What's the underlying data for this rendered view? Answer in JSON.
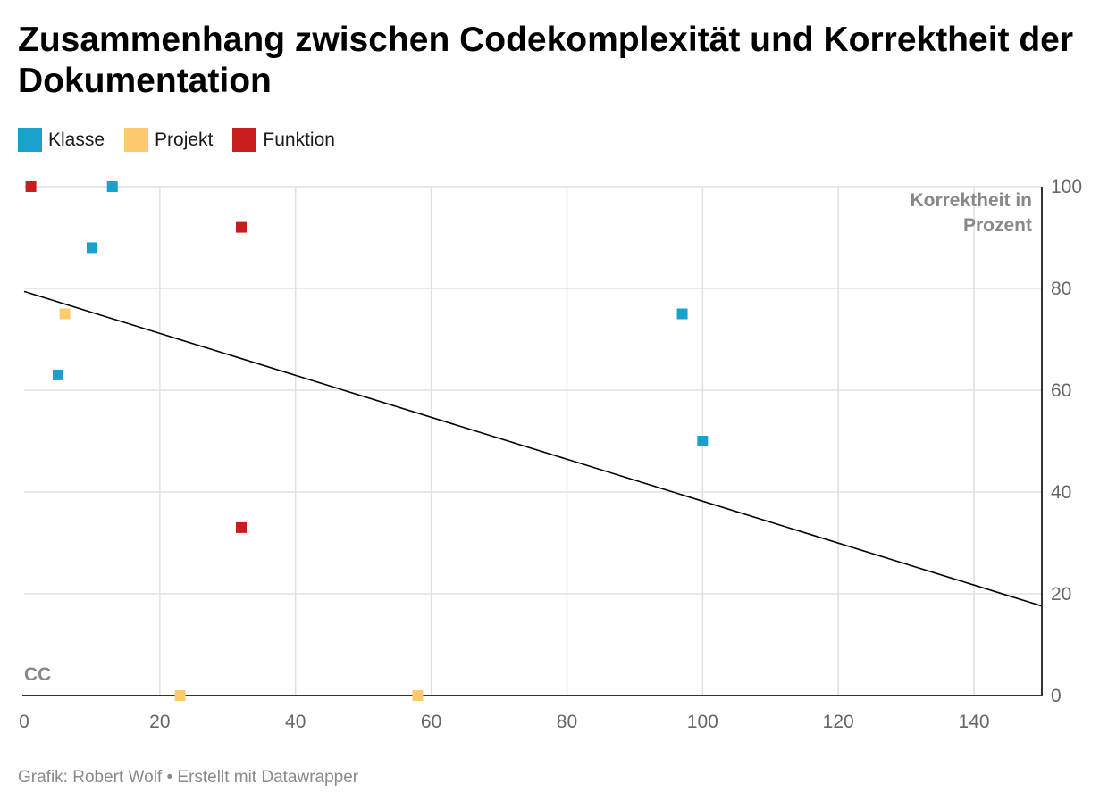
{
  "header": {
    "title": "Zusammenhang zwischen Codekomplexität und Korrektheit der Dokumentation"
  },
  "footer": {
    "source": "Grafik: Robert Wolf • Erstellt mit Datawrapper"
  },
  "chart_data": {
    "type": "scatter",
    "title": "Zusammenhang zwischen Codekomplexität und Korrektheit der Dokumentation",
    "xlabel": "CC",
    "ylabel": "Korrektheit in Prozent",
    "xlim": [
      0,
      150
    ],
    "ylim": [
      0,
      100
    ],
    "x_ticks": [
      0,
      20,
      40,
      60,
      80,
      100,
      120,
      140
    ],
    "y_ticks": [
      0,
      20,
      40,
      60,
      80,
      100
    ],
    "grid": true,
    "legend_position": "top-left",
    "series": [
      {
        "name": "Klasse",
        "color": "#18a1cd",
        "points": [
          {
            "x": 13,
            "y": 100
          },
          {
            "x": 10,
            "y": 88
          },
          {
            "x": 5,
            "y": 63
          },
          {
            "x": 97,
            "y": 75
          },
          {
            "x": 100,
            "y": 50
          }
        ]
      },
      {
        "name": "Projekt",
        "color": "#fdca70",
        "points": [
          {
            "x": 6,
            "y": 75
          },
          {
            "x": 23,
            "y": 0
          },
          {
            "x": 58,
            "y": 0
          }
        ]
      },
      {
        "name": "Funktion",
        "color": "#c71e1d",
        "points": [
          {
            "x": 1,
            "y": 100
          },
          {
            "x": 32,
            "y": 92
          },
          {
            "x": 32,
            "y": 33
          }
        ]
      }
    ],
    "trendline": {
      "color": "#000000",
      "points": [
        {
          "x": 0,
          "y": 79.4
        },
        {
          "x": 150,
          "y": 17.6
        }
      ]
    }
  }
}
